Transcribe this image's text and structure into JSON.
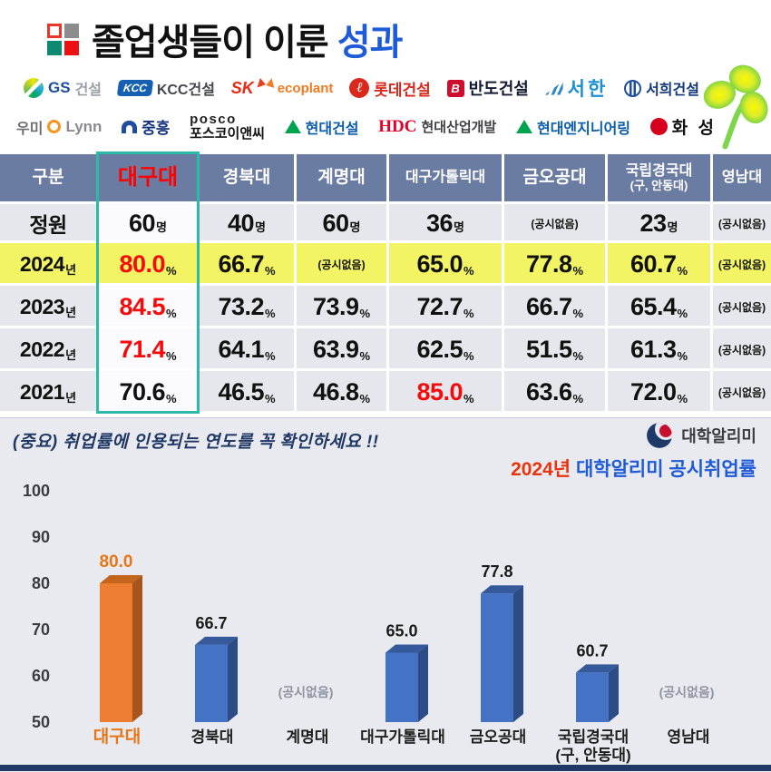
{
  "title": {
    "text": "졸업생들이 이룬 ",
    "highlight": "성과"
  },
  "partners": {
    "row1": [
      {
        "name": "gs-construction",
        "parts": [
          {
            "icon": "gs-swirl-icon"
          },
          {
            "text": "GS",
            "cls": "t-gs"
          },
          {
            "text": "건설",
            "cls": "t-gs-sub"
          }
        ]
      },
      {
        "name": "kcc-construction",
        "parts": [
          {
            "text": "KCC",
            "cls": "kcc-box"
          },
          {
            "text": "KCC건설",
            "cls": "t-kcc"
          }
        ]
      },
      {
        "name": "sk-ecoplant",
        "parts": [
          {
            "text": "SK",
            "cls": "t-sk"
          },
          {
            "icon": "sk-butterfly-icon"
          },
          {
            "text": "ecoplant",
            "cls": "t-sk-eco"
          }
        ]
      },
      {
        "name": "lotte-construction",
        "parts": [
          {
            "text": "ℓ",
            "cls": "lotte-circle"
          },
          {
            "text": "롯데건설",
            "cls": "t-lotte"
          }
        ]
      },
      {
        "name": "bando-construction",
        "parts": [
          {
            "text": "B",
            "cls": "bando-box"
          },
          {
            "text": "반도건설",
            "cls": "t-bando"
          }
        ]
      },
      {
        "name": "seohan",
        "parts": [
          {
            "icon": "seohan-wave-icon"
          },
          {
            "text": "서한",
            "cls": "t-seohan"
          }
        ]
      },
      {
        "name": "seohee-construction",
        "parts": [
          {
            "icon": "seohee-globe-icon"
          },
          {
            "text": "서희건설",
            "cls": "t-seohee"
          }
        ]
      }
    ],
    "row2": [
      {
        "name": "woomi-lynn",
        "parts": [
          {
            "text": "우미",
            "cls": "t-woomi"
          },
          {
            "icon": "lynn-ring-icon"
          },
          {
            "text": "Lynn",
            "cls": "t-lynn"
          }
        ]
      },
      {
        "name": "jungheung",
        "parts": [
          {
            "icon": "jungheung-icon"
          },
          {
            "text": "중흥",
            "cls": "t-jungheung"
          }
        ]
      },
      {
        "name": "posco-enc",
        "cls": "stack",
        "parts": [
          {
            "text": "posco",
            "cls": "t-posco-en"
          },
          {
            "text": "포스코이앤씨",
            "cls": "t-posco-kr"
          }
        ]
      },
      {
        "name": "hyundai-construction",
        "parts": [
          {
            "icon": "hyundai-triangle-icon"
          },
          {
            "text": "현대건설",
            "cls": "t-hyundai"
          }
        ]
      },
      {
        "name": "hdc",
        "parts": [
          {
            "text": "HDC",
            "cls": "t-hdc"
          },
          {
            "text": "현대산업개발",
            "cls": "t-hdc-sub"
          }
        ]
      },
      {
        "name": "hyundai-engineering",
        "parts": [
          {
            "icon": "hyundai-triangle-icon"
          },
          {
            "text": "현대엔지니어링",
            "cls": "t-hyundai"
          }
        ]
      },
      {
        "name": "hwasung",
        "parts": [
          {
            "icon": "hwasung-icon"
          },
          {
            "text": "화 성",
            "cls": "t-hwasung"
          }
        ]
      }
    ]
  },
  "table": {
    "none_label": "(공시없음)",
    "columns": [
      {
        "label": "구분"
      },
      {
        "label": "대구대",
        "highlight": true
      },
      {
        "label": "경북대"
      },
      {
        "label": "계명대"
      },
      {
        "label": "대구가톨릭대",
        "small": true
      },
      {
        "label": "금오공대"
      },
      {
        "label": "국립경국대",
        "sub": "(구, 안동대)"
      },
      {
        "label": "영남대",
        "small": true
      }
    ],
    "rows": [
      {
        "label": "정원",
        "cells": [
          {
            "v": "60",
            "u": "명"
          },
          {
            "v": "40",
            "u": "명"
          },
          {
            "v": "60",
            "u": "명"
          },
          {
            "v": "36",
            "u": "명"
          },
          {
            "none": true
          },
          {
            "v": "23",
            "u": "명"
          },
          {
            "none": true
          }
        ]
      },
      {
        "label": "2024",
        "unit": "년",
        "yellow": true,
        "cells": [
          {
            "v": "80.0",
            "u": "%",
            "red": true
          },
          {
            "v": "66.7",
            "u": "%"
          },
          {
            "none": true
          },
          {
            "v": "65.0",
            "u": "%"
          },
          {
            "v": "77.8",
            "u": "%"
          },
          {
            "v": "60.7",
            "u": "%"
          },
          {
            "none": true
          }
        ]
      },
      {
        "label": "2023",
        "unit": "년",
        "cells": [
          {
            "v": "84.5",
            "u": "%",
            "red": true
          },
          {
            "v": "73.2",
            "u": "%"
          },
          {
            "v": "73.9",
            "u": "%"
          },
          {
            "v": "72.7",
            "u": "%"
          },
          {
            "v": "66.7",
            "u": "%"
          },
          {
            "v": "65.4",
            "u": "%"
          },
          {
            "none": true
          }
        ]
      },
      {
        "label": "2022",
        "unit": "년",
        "cells": [
          {
            "v": "71.4",
            "u": "%",
            "red": true
          },
          {
            "v": "64.1",
            "u": "%"
          },
          {
            "v": "63.9",
            "u": "%"
          },
          {
            "v": "62.5",
            "u": "%"
          },
          {
            "v": "51.5",
            "u": "%"
          },
          {
            "v": "61.3",
            "u": "%"
          },
          {
            "none": true
          }
        ]
      },
      {
        "label": "2021",
        "unit": "년",
        "cells": [
          {
            "v": "70.6",
            "u": "%"
          },
          {
            "v": "46.5",
            "u": "%"
          },
          {
            "v": "46.8",
            "u": "%"
          },
          {
            "v": "85.0",
            "u": "%",
            "red": true
          },
          {
            "v": "63.6",
            "u": "%"
          },
          {
            "v": "72.0",
            "u": "%"
          },
          {
            "none": true
          }
        ]
      }
    ]
  },
  "note": "(중요) 취업률에 인용되는 연도를 꼭 확인하세요 !!",
  "source": {
    "logo_label": "대학알리미",
    "caption_year": "2024년",
    "caption_rest": " 대학알리미 공시취업률"
  },
  "chart_data": {
    "type": "bar",
    "title": "2024년 대학알리미 공시취업률",
    "categories": [
      "대구대",
      "경북대",
      "계명대",
      "대구가톨릭대",
      "금오공대",
      "국립경국대\n(구, 안동대)",
      "영남대"
    ],
    "values": [
      80.0,
      66.7,
      null,
      65.0,
      77.8,
      60.7,
      null
    ],
    "null_label": "(공시없음)",
    "xlabel": "",
    "ylabel": "",
    "ylim": [
      50,
      100
    ],
    "yticks": [
      100,
      90,
      80,
      70,
      60,
      50
    ],
    "grid": false,
    "legend": "none",
    "bar_style": "3d",
    "highlight_category": "대구대",
    "colors": {
      "highlight": "#ED7D31",
      "default": "#4472C4"
    }
  }
}
